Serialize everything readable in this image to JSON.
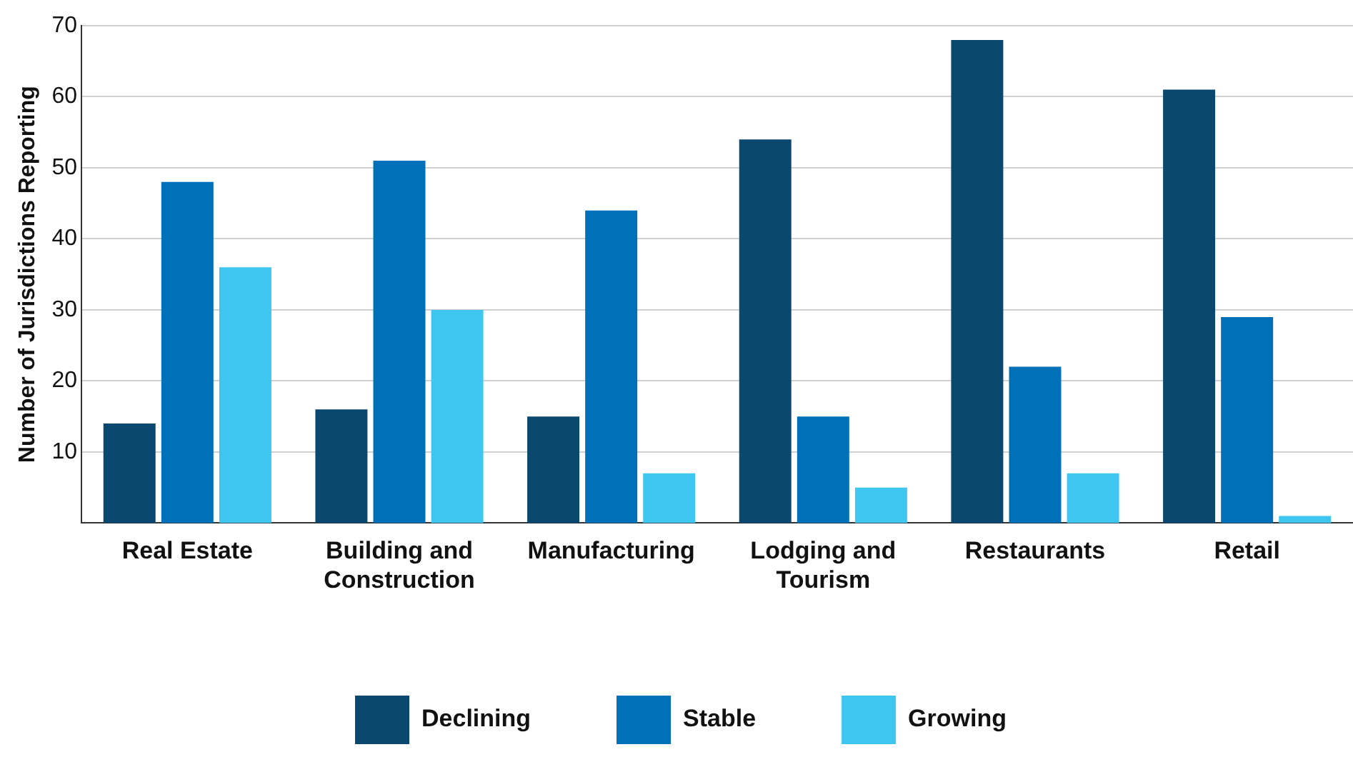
{
  "chart_data": {
    "type": "bar",
    "ylabel": "Number of Jurisdictions Reporting",
    "categories": [
      "Real Estate",
      "Building and Construction",
      "Manufacturing",
      "Lodging and Tourism",
      "Restaurants",
      "Retail"
    ],
    "series": [
      {
        "name": "Declining",
        "color": "#0b4870",
        "values": [
          14,
          16,
          15,
          54,
          68,
          61
        ]
      },
      {
        "name": "Stable",
        "color": "#0070b8",
        "values": [
          48,
          51,
          44,
          15,
          22,
          29
        ]
      },
      {
        "name": "Growing",
        "color": "#3ec6f0",
        "values": [
          36,
          30,
          7,
          5,
          7,
          1
        ]
      }
    ],
    "ylim": [
      0,
      70
    ],
    "yticks": [
      10,
      20,
      30,
      40,
      50,
      60,
      70
    ],
    "grid": "y",
    "legend": "bottom"
  }
}
